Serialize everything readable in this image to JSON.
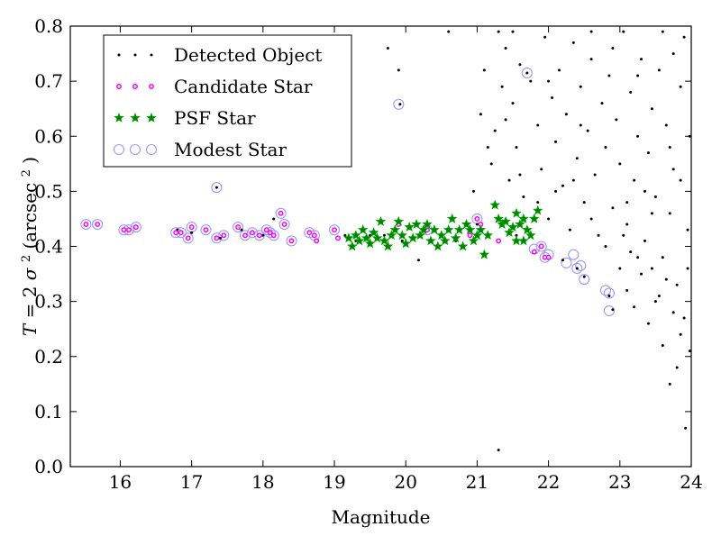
{
  "chart_data": {
    "type": "scatter",
    "title": "",
    "xlabel": "Magnitude",
    "ylabel": "T = 2σ² (arcsec²)",
    "ylabel_parts": {
      "pre": "T",
      "eq": " = 2",
      "sigma": "σ",
      "sup": "2",
      "post": " (arcsec",
      "post_sup": "2",
      "close": ")"
    },
    "xlim": [
      15.3,
      24
    ],
    "ylim": [
      0,
      0.8
    ],
    "xticks": [
      "16",
      "17",
      "18",
      "19",
      "20",
      "21",
      "22",
      "23",
      "24"
    ],
    "yticks": [
      "0.0",
      "0.1",
      "0.2",
      "0.3",
      "0.4",
      "0.5",
      "0.6",
      "0.7",
      "0.8"
    ],
    "grid": false,
    "legend_position": "upper-left",
    "colors": {
      "detected": "#000000",
      "candidate": "#ff00ff",
      "psf_fill": "#008000",
      "psf_edge": "#00aa00",
      "modest": "#9999ff"
    },
    "series": [
      {
        "name": "Detected Object",
        "marker": "dot",
        "points": [
          [
            15.52,
            0.44
          ],
          [
            15.68,
            0.44
          ],
          [
            16.05,
            0.43
          ],
          [
            16.12,
            0.43
          ],
          [
            16.22,
            0.435
          ],
          [
            16.8,
            0.43
          ],
          [
            16.85,
            0.425
          ],
          [
            17.0,
            0.425
          ],
          [
            17.35,
            0.507
          ],
          [
            17.4,
            0.415
          ],
          [
            17.7,
            0.43
          ],
          [
            18.0,
            0.42
          ],
          [
            18.15,
            0.45
          ],
          [
            18.25,
            0.46
          ],
          [
            18.4,
            0.41
          ],
          [
            18.72,
            0.42
          ],
          [
            19.0,
            0.43
          ],
          [
            19.15,
            0.42
          ],
          [
            19.3,
            0.41
          ],
          [
            19.5,
            0.42
          ],
          [
            19.7,
            0.42
          ],
          [
            19.9,
            0.72
          ],
          [
            19.92,
            0.658
          ],
          [
            19.95,
            0.41
          ],
          [
            20.18,
            0.375
          ],
          [
            20.4,
            0.43
          ],
          [
            20.6,
            0.79
          ],
          [
            20.7,
            0.41
          ],
          [
            20.9,
            0.42
          ],
          [
            21.0,
            0.44
          ],
          [
            21.3,
            0.03
          ],
          [
            21.55,
            0.42
          ],
          [
            21.7,
            0.715
          ],
          [
            21.75,
            0.7
          ],
          [
            21.8,
            0.39
          ],
          [
            19.75,
            0.76
          ],
          [
            20.95,
            0.5
          ],
          [
            21.05,
            0.64
          ],
          [
            21.1,
            0.72
          ],
          [
            21.2,
            0.55
          ],
          [
            21.25,
            0.61
          ],
          [
            21.35,
            0.69
          ],
          [
            21.4,
            0.76
          ],
          [
            21.45,
            0.52
          ],
          [
            21.5,
            0.66
          ],
          [
            21.55,
            0.58
          ],
          [
            21.6,
            0.73
          ],
          [
            21.65,
            0.49
          ],
          [
            21.85,
            0.62
          ],
          [
            21.9,
            0.54
          ],
          [
            21.95,
            0.78
          ],
          [
            22.0,
            0.45
          ],
          [
            22.05,
            0.67
          ],
          [
            22.1,
            0.59
          ],
          [
            22.15,
            0.72
          ],
          [
            22.2,
            0.51
          ],
          [
            22.25,
            0.64
          ],
          [
            22.3,
            0.43
          ],
          [
            22.35,
            0.77
          ],
          [
            22.4,
            0.56
          ],
          [
            22.45,
            0.69
          ],
          [
            22.5,
            0.48
          ],
          [
            22.55,
            0.61
          ],
          [
            22.6,
            0.74
          ],
          [
            22.65,
            0.53
          ],
          [
            22.7,
            0.42
          ],
          [
            22.75,
            0.66
          ],
          [
            22.8,
            0.58
          ],
          [
            22.85,
            0.71
          ],
          [
            22.9,
            0.47
          ],
          [
            22.95,
            0.63
          ],
          [
            23.0,
            0.55
          ],
          [
            23.05,
            0.79
          ],
          [
            23.1,
            0.44
          ],
          [
            23.15,
            0.68
          ],
          [
            23.2,
            0.52
          ],
          [
            23.25,
            0.6
          ],
          [
            23.3,
            0.74
          ],
          [
            23.35,
            0.41
          ],
          [
            23.4,
            0.57
          ],
          [
            23.45,
            0.65
          ],
          [
            23.5,
            0.49
          ],
          [
            23.55,
            0.72
          ],
          [
            23.6,
            0.38
          ],
          [
            23.65,
            0.62
          ],
          [
            23.7,
            0.46
          ],
          [
            23.75,
            0.54
          ],
          [
            23.8,
            0.33
          ],
          [
            23.85,
            0.69
          ],
          [
            23.9,
            0.27
          ],
          [
            23.95,
            0.43
          ],
          [
            23.92,
            0.07
          ],
          [
            23.8,
            0.18
          ],
          [
            23.7,
            0.15
          ],
          [
            23.6,
            0.22
          ],
          [
            23.5,
            0.3
          ],
          [
            23.4,
            0.26
          ],
          [
            23.3,
            0.35
          ],
          [
            23.2,
            0.29
          ],
          [
            23.1,
            0.32
          ],
          [
            22.2,
            0.375
          ],
          [
            22.4,
            0.36
          ],
          [
            22.5,
            0.345
          ],
          [
            22.85,
            0.31
          ],
          [
            22.9,
            0.285
          ],
          [
            23.0,
            0.36
          ],
          [
            23.15,
            0.39
          ],
          [
            23.25,
            0.38
          ],
          [
            23.45,
            0.36
          ],
          [
            23.55,
            0.31
          ],
          [
            23.65,
            0.34
          ],
          [
            23.75,
            0.28
          ],
          [
            23.85,
            0.24
          ],
          [
            23.95,
            0.36
          ],
          [
            23.98,
            0.21
          ],
          [
            21.3,
            0.79
          ],
          [
            21.5,
            0.79
          ],
          [
            22.6,
            0.79
          ],
          [
            23.6,
            0.79
          ],
          [
            23.9,
            0.78
          ],
          [
            22.1,
            0.5
          ],
          [
            22.6,
            0.45
          ],
          [
            23.1,
            0.48
          ],
          [
            23.35,
            0.5
          ],
          [
            23.7,
            0.58
          ],
          [
            21.15,
            0.58
          ],
          [
            21.4,
            0.63
          ],
          [
            21.6,
            0.53
          ],
          [
            21.85,
            0.48
          ],
          [
            22.35,
            0.52
          ],
          [
            22.8,
            0.4
          ],
          [
            23.05,
            0.42
          ],
          [
            23.45,
            0.46
          ],
          [
            23.85,
            0.52
          ],
          [
            23.98,
            0.6
          ],
          [
            22.0,
            0.7
          ],
          [
            22.45,
            0.62
          ],
          [
            22.9,
            0.76
          ],
          [
            23.25,
            0.71
          ],
          [
            23.75,
            0.75
          ]
        ]
      },
      {
        "name": "Candidate Star",
        "marker": "small-circle",
        "points": [
          [
            15.52,
            0.44
          ],
          [
            15.68,
            0.44
          ],
          [
            16.05,
            0.43
          ],
          [
            16.12,
            0.43
          ],
          [
            16.22,
            0.435
          ],
          [
            16.78,
            0.425
          ],
          [
            16.85,
            0.425
          ],
          [
            16.95,
            0.415
          ],
          [
            17.0,
            0.435
          ],
          [
            17.2,
            0.43
          ],
          [
            17.35,
            0.415
          ],
          [
            17.45,
            0.42
          ],
          [
            17.65,
            0.435
          ],
          [
            17.75,
            0.42
          ],
          [
            17.85,
            0.425
          ],
          [
            17.95,
            0.42
          ],
          [
            18.05,
            0.43
          ],
          [
            18.1,
            0.425
          ],
          [
            18.15,
            0.42
          ],
          [
            18.25,
            0.46
          ],
          [
            18.3,
            0.44
          ],
          [
            18.4,
            0.41
          ],
          [
            18.65,
            0.425
          ],
          [
            18.72,
            0.42
          ],
          [
            18.75,
            0.41
          ],
          [
            19.0,
            0.43
          ],
          [
            19.05,
            0.415
          ],
          [
            19.9,
            0.44
          ],
          [
            20.3,
            0.43
          ],
          [
            20.9,
            0.42
          ],
          [
            21.0,
            0.45
          ],
          [
            21.05,
            0.44
          ],
          [
            21.3,
            0.41
          ],
          [
            21.8,
            0.39
          ],
          [
            21.9,
            0.4
          ],
          [
            21.95,
            0.38
          ],
          [
            22.0,
            0.38
          ]
        ]
      },
      {
        "name": "PSF Star",
        "marker": "star",
        "points": [
          [
            19.2,
            0.415
          ],
          [
            19.25,
            0.4
          ],
          [
            19.3,
            0.42
          ],
          [
            19.35,
            0.41
          ],
          [
            19.4,
            0.43
          ],
          [
            19.45,
            0.415
          ],
          [
            19.5,
            0.405
          ],
          [
            19.55,
            0.425
          ],
          [
            19.6,
            0.415
          ],
          [
            19.65,
            0.445
          ],
          [
            19.7,
            0.41
          ],
          [
            19.75,
            0.4
          ],
          [
            19.8,
            0.42
          ],
          [
            19.85,
            0.43
          ],
          [
            19.9,
            0.445
          ],
          [
            19.95,
            0.42
          ],
          [
            20.0,
            0.405
          ],
          [
            20.05,
            0.435
          ],
          [
            20.1,
            0.415
          ],
          [
            20.15,
            0.44
          ],
          [
            20.2,
            0.42
          ],
          [
            20.25,
            0.43
          ],
          [
            20.3,
            0.44
          ],
          [
            20.35,
            0.41
          ],
          [
            20.4,
            0.43
          ],
          [
            20.45,
            0.4
          ],
          [
            20.5,
            0.42
          ],
          [
            20.55,
            0.41
          ],
          [
            20.6,
            0.43
          ],
          [
            20.65,
            0.45
          ],
          [
            20.7,
            0.415
          ],
          [
            20.75,
            0.43
          ],
          [
            20.8,
            0.4
          ],
          [
            20.85,
            0.44
          ],
          [
            20.9,
            0.43
          ],
          [
            20.95,
            0.41
          ],
          [
            21.0,
            0.42
          ],
          [
            21.05,
            0.43
          ],
          [
            21.1,
            0.385
          ],
          [
            21.15,
            0.42
          ],
          [
            21.25,
            0.475
          ],
          [
            21.3,
            0.45
          ],
          [
            21.35,
            0.44
          ],
          [
            21.4,
            0.445
          ],
          [
            21.45,
            0.425
          ],
          [
            21.5,
            0.435
          ],
          [
            21.55,
            0.46
          ],
          [
            21.6,
            0.44
          ],
          [
            21.65,
            0.41
          ],
          [
            21.7,
            0.43
          ],
          [
            21.75,
            0.42
          ],
          [
            21.8,
            0.45
          ],
          [
            21.85,
            0.465
          ],
          [
            21.55,
            0.41
          ],
          [
            21.65,
            0.45
          ]
        ]
      },
      {
        "name": "Modest Star",
        "marker": "open-circle",
        "points": [
          [
            15.52,
            0.44
          ],
          [
            15.68,
            0.44
          ],
          [
            16.05,
            0.43
          ],
          [
            16.12,
            0.43
          ],
          [
            16.22,
            0.435
          ],
          [
            16.78,
            0.425
          ],
          [
            16.85,
            0.425
          ],
          [
            16.95,
            0.415
          ],
          [
            17.0,
            0.435
          ],
          [
            17.2,
            0.43
          ],
          [
            17.35,
            0.507
          ],
          [
            17.35,
            0.415
          ],
          [
            17.45,
            0.42
          ],
          [
            17.65,
            0.435
          ],
          [
            17.75,
            0.42
          ],
          [
            17.85,
            0.425
          ],
          [
            17.95,
            0.42
          ],
          [
            18.05,
            0.43
          ],
          [
            18.1,
            0.425
          ],
          [
            18.15,
            0.42
          ],
          [
            18.25,
            0.46
          ],
          [
            18.3,
            0.44
          ],
          [
            18.4,
            0.41
          ],
          [
            18.65,
            0.425
          ],
          [
            18.72,
            0.42
          ],
          [
            19.0,
            0.43
          ],
          [
            19.9,
            0.658
          ],
          [
            20.3,
            0.43
          ],
          [
            21.0,
            0.45
          ],
          [
            21.7,
            0.715
          ],
          [
            21.8,
            0.395
          ],
          [
            21.9,
            0.4
          ],
          [
            21.95,
            0.38
          ],
          [
            22.0,
            0.385
          ],
          [
            22.25,
            0.37
          ],
          [
            22.35,
            0.385
          ],
          [
            22.4,
            0.36
          ],
          [
            22.45,
            0.365
          ],
          [
            22.5,
            0.34
          ],
          [
            22.8,
            0.32
          ],
          [
            22.85,
            0.315
          ],
          [
            22.85,
            0.283
          ]
        ]
      }
    ]
  }
}
